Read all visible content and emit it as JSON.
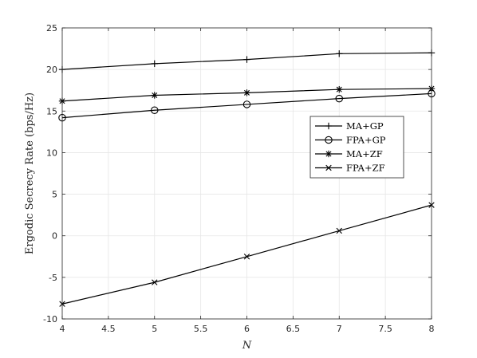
{
  "chart_data": {
    "type": "line",
    "title": "",
    "xlabel": "N",
    "ylabel": "Ergodic Secrecy Rate (bps/Hz)",
    "xlim": [
      4,
      8
    ],
    "ylim": [
      -10,
      25
    ],
    "grid": true,
    "legend_position": "right-middle",
    "x": [
      4,
      5,
      6,
      7,
      8
    ],
    "x_ticks": [
      "4",
      "4.5",
      "5",
      "5.5",
      "6",
      "6.5",
      "7",
      "7.5",
      "8"
    ],
    "y_ticks": [
      "-10",
      "-5",
      "0",
      "5",
      "10",
      "15",
      "20",
      "25"
    ],
    "series": [
      {
        "name": "MA+GP",
        "marker": "plus",
        "values": [
          20.0,
          20.7,
          21.2,
          21.9,
          22.0
        ]
      },
      {
        "name": "FPA+GP",
        "marker": "circle",
        "values": [
          14.2,
          15.1,
          15.8,
          16.5,
          17.1
        ]
      },
      {
        "name": "MA+ZF",
        "marker": "asterisk",
        "values": [
          16.2,
          16.9,
          17.2,
          17.6,
          17.7
        ]
      },
      {
        "name": "FPA+ZF",
        "marker": "cross",
        "values": [
          -8.2,
          -5.6,
          -2.5,
          0.6,
          3.7
        ]
      }
    ],
    "colors": {
      "line": "#000000",
      "grid": "#e6e6e6",
      "axis": "#262626"
    }
  }
}
